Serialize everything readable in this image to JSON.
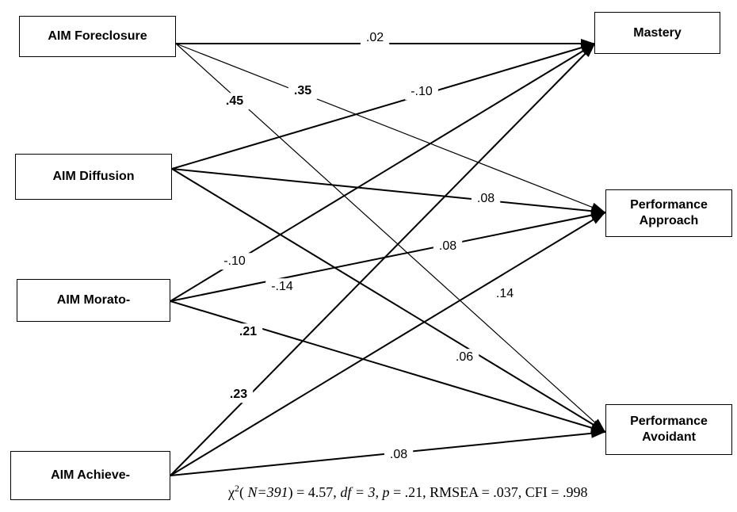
{
  "nodes": {
    "foreclosure": "AIM Foreclosure",
    "diffusion": "AIM Diffusion",
    "moratorium": "AIM Morato-",
    "achievement": "AIM Achieve-",
    "mastery": "Mastery",
    "perf_approach": "Performance\nApproach",
    "perf_avoidant": "Performance\nAvoidant"
  },
  "paths": [
    {
      "from": "foreclosure",
      "to": "mastery",
      "coef": ".02",
      "bold": false
    },
    {
      "from": "foreclosure",
      "to": "perf_approach",
      "coef": ".35",
      "bold": true
    },
    {
      "from": "foreclosure",
      "to": "perf_avoidant",
      "coef": ".45",
      "bold": true
    },
    {
      "from": "diffusion",
      "to": "mastery",
      "coef": "-.10",
      "bold": false
    },
    {
      "from": "diffusion",
      "to": "perf_approach",
      "coef": ".08",
      "bold": false
    },
    {
      "from": "diffusion",
      "to": "perf_avoidant",
      "coef": ".06",
      "bold": false
    },
    {
      "from": "moratorium",
      "to": "mastery",
      "coef": "-.10",
      "bold": false
    },
    {
      "from": "moratorium",
      "to": "perf_approach",
      "coef": ".08",
      "bold": false
    },
    {
      "from": "moratorium",
      "to": "perf_avoidant",
      "coef": ".21",
      "bold": true
    },
    {
      "from": "achievement",
      "to": "mastery",
      "coef": ".23",
      "bold": true
    },
    {
      "from": "achievement",
      "to": "perf_approach",
      "coef": ".14",
      "bold": false
    },
    {
      "from": "achievement",
      "to": "perf_avoidant",
      "coef": ".08",
      "bold": false
    }
  ],
  "correlations": [
    {
      "a": "moratorium",
      "b": "achievement",
      "coef": "-.14",
      "bold": false
    }
  ],
  "fit": {
    "chi": "χ",
    "sq": "2",
    "open": "( ",
    "n": "N=391",
    "chi_value": ") = 4.57, ",
    "df_label": "df = 3, p",
    "rest": " = .21, RMSEA = .037, CFI = .998"
  }
}
